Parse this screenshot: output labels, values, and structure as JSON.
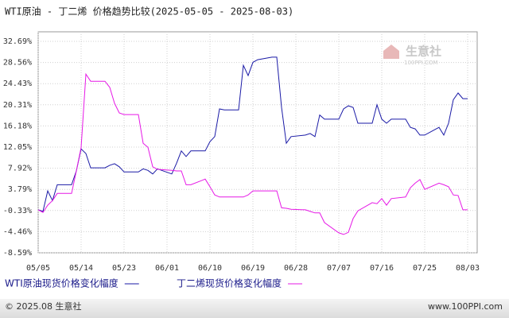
{
  "chart_data": {
    "type": "line",
    "title": "WTI原油 - 丁二烯 价格趋势比较(2025-05-05 - 2025-08-03)",
    "watermark": "生意社",
    "watermark_sub": "100PPI.COM",
    "footer_left": "© 2025.08 生意社",
    "footer_right": "www.100PPI.com",
    "x": [
      "2025-05-05",
      "2025-05-06",
      "2025-05-07",
      "2025-05-08",
      "2025-05-09",
      "2025-05-12",
      "2025-05-13",
      "2025-05-14",
      "2025-05-15",
      "2025-05-16",
      "2025-05-19",
      "2025-05-20",
      "2025-05-21",
      "2025-05-22",
      "2025-05-23",
      "2025-05-26",
      "2025-05-27",
      "2025-05-28",
      "2025-05-29",
      "2025-05-30",
      "2025-06-02",
      "2025-06-03",
      "2025-06-04",
      "2025-06-05",
      "2025-06-06",
      "2025-06-09",
      "2025-06-10",
      "2025-06-11",
      "2025-06-12",
      "2025-06-13",
      "2025-06-16",
      "2025-06-17",
      "2025-06-18",
      "2025-06-19",
      "2025-06-20",
      "2025-06-23",
      "2025-06-24",
      "2025-06-25",
      "2025-06-26",
      "2025-06-27",
      "2025-06-30",
      "2025-07-01",
      "2025-07-02",
      "2025-07-03",
      "2025-07-04",
      "2025-07-07",
      "2025-07-08",
      "2025-07-09",
      "2025-07-10",
      "2025-07-11",
      "2025-07-14",
      "2025-07-15",
      "2025-07-16",
      "2025-07-17",
      "2025-07-18",
      "2025-07-21",
      "2025-07-22",
      "2025-07-23",
      "2025-07-24",
      "2025-07-25",
      "2025-07-28",
      "2025-07-29",
      "2025-07-30",
      "2025-07-31",
      "2025-08-01",
      "2025-08-02",
      "2025-08-03"
    ],
    "series": [
      {
        "name": "WTI原油现货价格变化幅度",
        "color": "#1a1aa6",
        "values": [
          -0.2,
          -0.5,
          3.5,
          1.6,
          4.7,
          4.7,
          7.4,
          11.7,
          10.8,
          8.0,
          8.0,
          8.5,
          8.8,
          8.2,
          7.2,
          7.2,
          7.8,
          7.5,
          6.8,
          7.8,
          6.8,
          8.9,
          11.3,
          10.2,
          11.3,
          11.3,
          13.1,
          14.1,
          19.5,
          19.3,
          19.3,
          28.0,
          26.0,
          28.6,
          29.1,
          29.6,
          29.6,
          19.8,
          12.8,
          14.1,
          14.4,
          14.7,
          14.1,
          18.3,
          17.5,
          17.5,
          19.5,
          20.1,
          19.8,
          16.7,
          16.7,
          20.3,
          17.5,
          16.7,
          17.5,
          17.5,
          15.9,
          15.6,
          14.4,
          14.4,
          15.9,
          14.4,
          16.7,
          21.3,
          22.6,
          21.5,
          21.5
        ]
      },
      {
        "name": "丁二烯现货价格变化幅度",
        "color": "#e619e6",
        "values": [
          -0.2,
          -0.7,
          0.7,
          1.6,
          3.0,
          3.0,
          7.4,
          12.0,
          26.3,
          24.9,
          24.9,
          23.7,
          20.6,
          18.7,
          18.4,
          18.4,
          12.8,
          12.0,
          8.2,
          7.7,
          7.5,
          7.4,
          7.4,
          4.7,
          4.7,
          5.8,
          4.3,
          2.7,
          2.3,
          2.3,
          2.3,
          2.3,
          2.7,
          3.5,
          3.5,
          3.5,
          3.5,
          0.2,
          0.1,
          -0.1,
          -0.2,
          -0.5,
          -0.8,
          -0.8,
          -2.7,
          -4.7,
          -5.0,
          -4.6,
          -1.9,
          -0.4,
          1.2,
          1.0,
          2.0,
          0.7,
          2.0,
          2.3,
          4.1,
          5.0,
          5.7,
          3.8,
          5.0,
          4.7,
          4.3,
          2.7,
          2.6,
          -0.2,
          -0.2
        ]
      }
    ],
    "xlim": [
      "2025-05-05",
      "2025-08-03"
    ],
    "xticks": [
      {
        "value": "2025-05-05",
        "label": "05/05"
      },
      {
        "value": "2025-05-14",
        "label": "05/14"
      },
      {
        "value": "2025-05-23",
        "label": "05/23"
      },
      {
        "value": "2025-06-01",
        "label": "06/01"
      },
      {
        "value": "2025-06-10",
        "label": "06/10"
      },
      {
        "value": "2025-06-19",
        "label": "06/19"
      },
      {
        "value": "2025-06-28",
        "label": "06/28"
      },
      {
        "value": "2025-07-07",
        "label": "07/07"
      },
      {
        "value": "2025-07-16",
        "label": "07/16"
      },
      {
        "value": "2025-07-25",
        "label": "07/25"
      },
      {
        "value": "2025-08-03",
        "label": "08/03"
      }
    ],
    "ylim": [
      -8.59,
      32.69
    ],
    "yticks": [
      {
        "value": 32.69,
        "label": "32.69%"
      },
      {
        "value": 28.56,
        "label": "28.56%"
      },
      {
        "value": 24.43,
        "label": "24.43%"
      },
      {
        "value": 20.31,
        "label": "20.31%"
      },
      {
        "value": 16.18,
        "label": "16.18%"
      },
      {
        "value": 12.05,
        "label": "12.05%"
      },
      {
        "value": 7.92,
        "label": "7.92%"
      },
      {
        "value": 3.79,
        "label": "3.79%"
      },
      {
        "value": -0.33,
        "label": "-0.33%"
      },
      {
        "value": -4.46,
        "label": "-4.46%"
      },
      {
        "value": -8.59,
        "label": "-8.59%"
      }
    ],
    "grid": true
  }
}
